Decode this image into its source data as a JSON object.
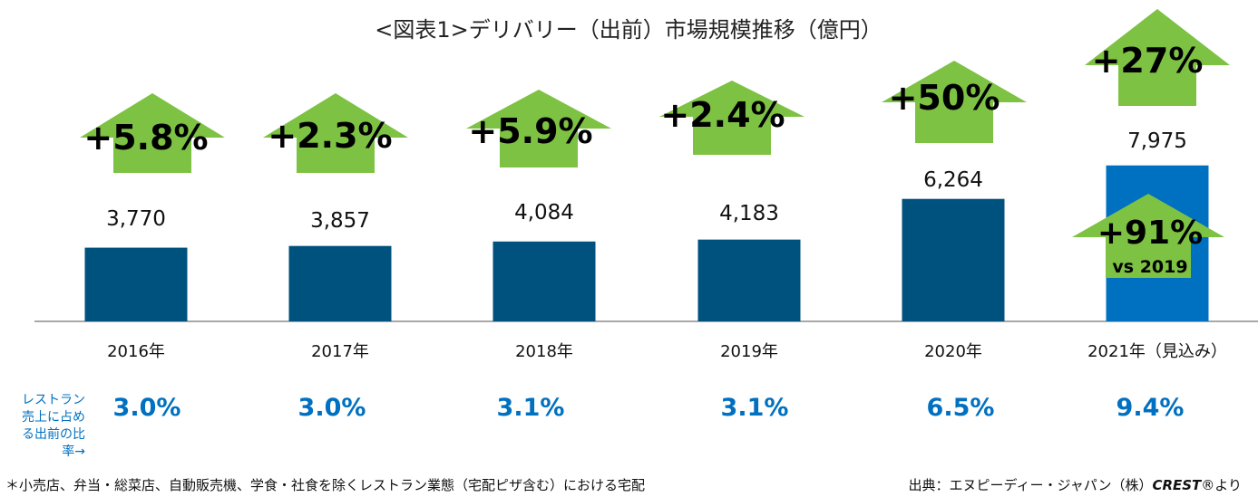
{
  "chart_data": {
    "type": "bar",
    "title": "<図表1>デリバリー（出前）市場規模推移（億円）",
    "categories": [
      "2016年",
      "2017年",
      "2018年",
      "2019年",
      "2020年",
      "2021年（見込み）"
    ],
    "values": [
      3770,
      3857,
      4084,
      4183,
      6264,
      7975
    ],
    "value_labels": [
      "3,770",
      "3,857",
      "4,084",
      "4,183",
      "6,264",
      "7,975"
    ],
    "growth_labels": [
      "+5.8%",
      "+2.3%",
      "+5.9%",
      "+2.4%",
      "+50%",
      "+27%"
    ],
    "extra_growth": {
      "label": "+91%",
      "sub": "vs 2019"
    },
    "bar_colors": [
      "#00527e",
      "#00527e",
      "#00527e",
      "#00527e",
      "#00527e",
      "#0070c0"
    ],
    "arrow_color": "#7dc242",
    "share_row_label": [
      "レストラン",
      "売上に占め",
      "る出前の比",
      "率→"
    ],
    "share_values": [
      "3.0%",
      "3.0%",
      "3.1%",
      "3.1%",
      "6.5%",
      "9.4%"
    ],
    "share_color": "#0070c0"
  },
  "footnote": "＊小売店、弁当・総菜店、自動販売機、学食・社食を除くレストラン業態（宅配ピザ含む）における宅配",
  "source": {
    "prefix": "出典：エヌピーディー・ジャパン（株）",
    "brand": "CREST",
    "suffix": "®より"
  }
}
